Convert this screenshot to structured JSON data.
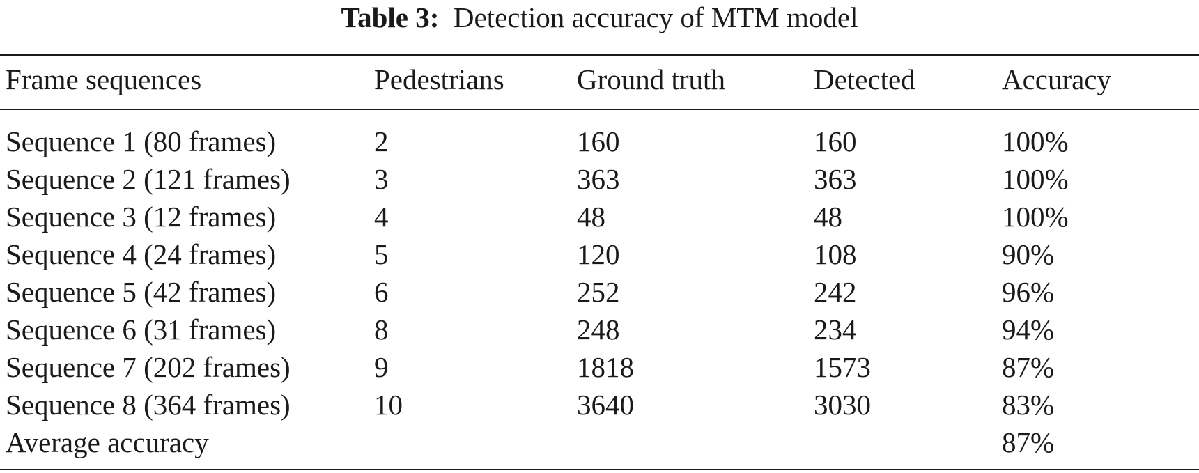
{
  "caption": {
    "label": "Table 3:",
    "text": "Detection accuracy of MTM model"
  },
  "table": {
    "headers": [
      "Frame sequences",
      "Pedestrians",
      "Ground truth",
      "Detected",
      "Accuracy"
    ],
    "rows": [
      [
        "Sequence 1 (80 frames)",
        "2",
        "160",
        "160",
        "100%"
      ],
      [
        "Sequence 2 (121 frames)",
        "3",
        "363",
        "363",
        "100%"
      ],
      [
        "Sequence 3 (12 frames)",
        "4",
        "48",
        "48",
        "100%"
      ],
      [
        "Sequence 4 (24 frames)",
        "5",
        "120",
        "108",
        "90%"
      ],
      [
        "Sequence 5 (42 frames)",
        "6",
        "252",
        "242",
        "96%"
      ],
      [
        "Sequence 6 (31 frames)",
        "8",
        "248",
        "234",
        "94%"
      ],
      [
        "Sequence 7 (202 frames)",
        "9",
        "1818",
        "1573",
        "87%"
      ],
      [
        "Sequence 8 (364 frames)",
        "10",
        "3640",
        "3030",
        "83%"
      ],
      [
        "Average accuracy",
        "",
        "",
        "",
        "87%"
      ]
    ]
  }
}
